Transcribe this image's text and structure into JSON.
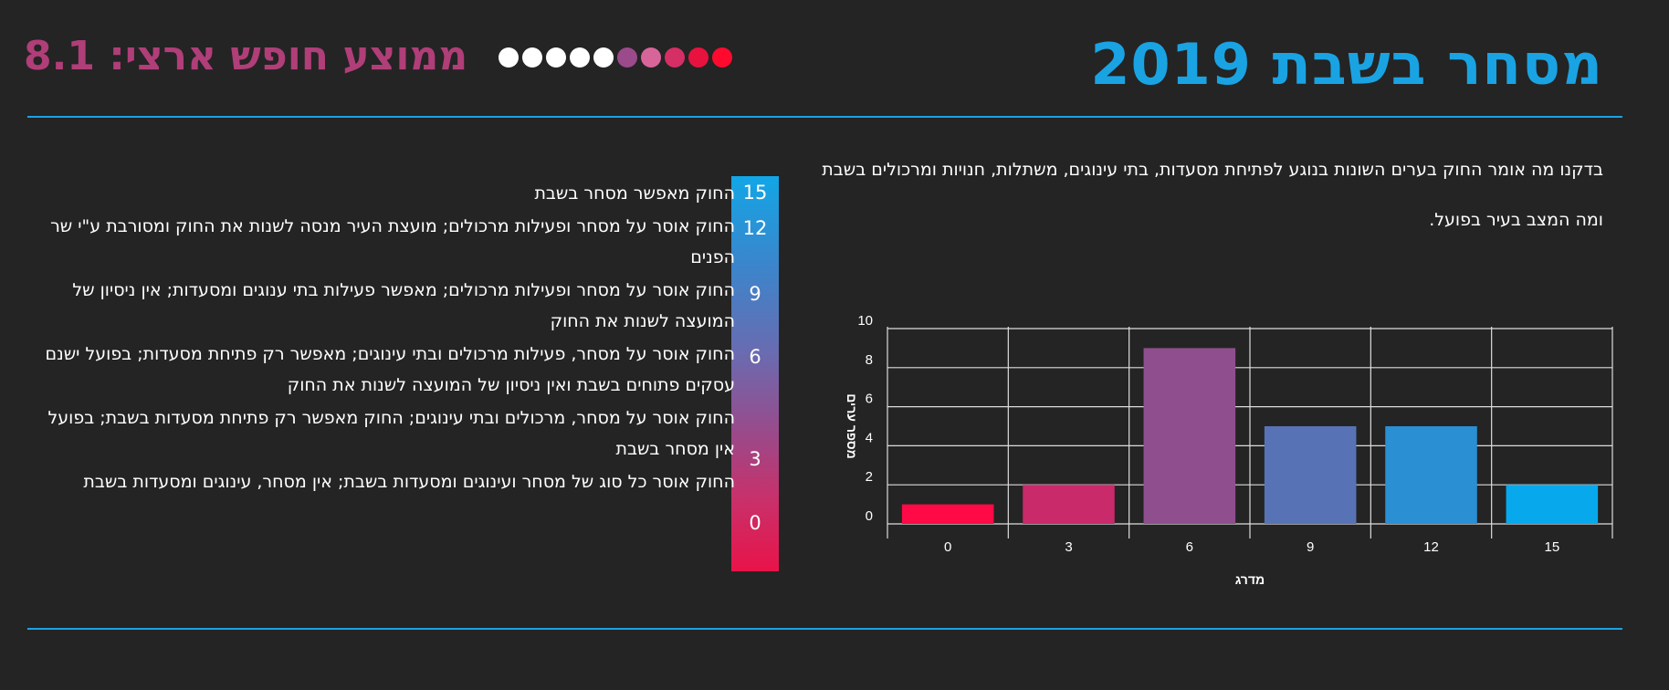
{
  "header": {
    "title": "מסחר בשבת 2019",
    "score_text": "ממוצע חופש ארצי: 8.1",
    "dots": [
      {
        "color": "#ffffff"
      },
      {
        "color": "#ffffff"
      },
      {
        "color": "#ffffff"
      },
      {
        "color": "#ffffff"
      },
      {
        "color": "#ffffff"
      },
      {
        "color": "#9b4a8c"
      },
      {
        "color": "#d8659a"
      },
      {
        "color": "#d52f66"
      },
      {
        "color": "#e8123f"
      },
      {
        "color": "#ff0a2e"
      }
    ]
  },
  "intro": {
    "paragraph1": "בדקנו מה אומר החוק בערים השונות בנוגע לפתיחת מסעדות, בתי עינוגים, משתלות, חנויות ומרכולים בשבת",
    "paragraph2": "ומה המצב בעיר בפועל."
  },
  "legend": {
    "items": [
      {
        "score": "15",
        "text": "החוק מאפשר מסחר בשבת"
      },
      {
        "score": "12",
        "text": "החוק אוסר על מסחר ופעילות מרכולים; מועצת העיר מנסה לשנות את החוק ומסורבת ע\"י שר הפנים"
      },
      {
        "score": "9",
        "text": "החוק אוסר על מסחר ופעילות מרכולים; מאפשר פעילות בתי ענוגים ומסעדות; אין ניסיון של המועצה לשנות את החוק"
      },
      {
        "score": "6",
        "text": "החוק אוסר על מסחר, פעילות מרכולים ובתי עינוגים; מאפשר רק פתיחת מסעדות; בפועל ישנם עסקים פתוחים בשבת ואין ניסיון של המועצה לשנות את החוק"
      },
      {
        "score": "3",
        "text": "החוק אוסר על מסחר, מרכולים ובתי עינוגים; החוק מאפשר רק פתיחת מסעדות בשבת; בפועל אין מסחר בשבת"
      },
      {
        "score": "0",
        "text": "החוק אוסר כל סוג של מסחר ועינוגים ומסעדות בשבת; אין מסחר, עינוגים ומסעדות בשבת"
      }
    ]
  },
  "chart_data": {
    "type": "bar",
    "categories": [
      "0",
      "3",
      "6",
      "9",
      "12",
      "15"
    ],
    "values": [
      1,
      2,
      9,
      5,
      5,
      2
    ],
    "colors": [
      "#ff0a46",
      "#c82a6a",
      "#8f4f8e",
      "#5873b5",
      "#2b8fd3",
      "#07a9ec"
    ],
    "title": "",
    "xlabel": "מדרג",
    "ylabel": "מספר ערים",
    "ylim": [
      0,
      10
    ],
    "yticks": [
      "0",
      "2",
      "4",
      "6",
      "8",
      "10"
    ],
    "grid": true
  }
}
